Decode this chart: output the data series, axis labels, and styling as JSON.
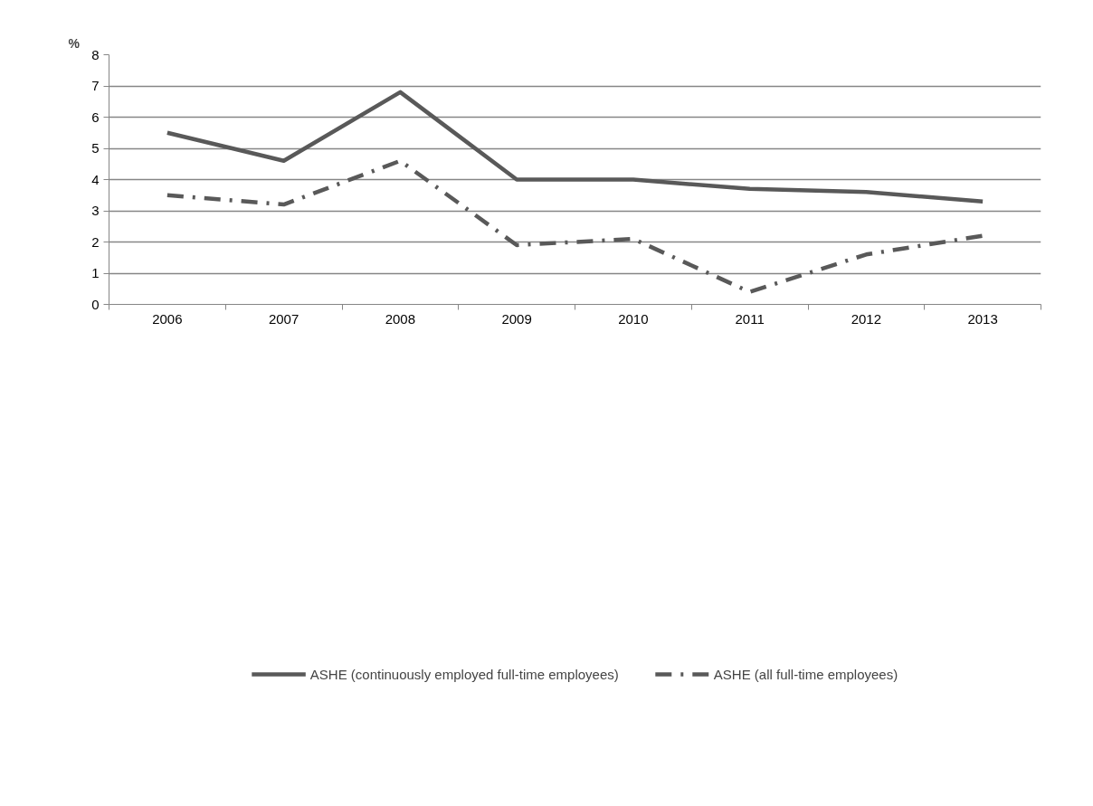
{
  "chart_data": {
    "type": "line",
    "ylabel": "%",
    "categories": [
      "2006",
      "2007",
      "2008",
      "2009",
      "2010",
      "2011",
      "2012",
      "2013"
    ],
    "series": [
      {
        "name": "ASHE (continuously employed full-time employees)",
        "color": "#595959",
        "line_style": "solid",
        "values": [
          5.5,
          4.6,
          6.8,
          4.0,
          4.0,
          3.7,
          3.6,
          3.3
        ]
      },
      {
        "name": "ASHE (all full-time employees)",
        "color": "#595959",
        "line_style": "dashdot",
        "values": [
          3.5,
          3.2,
          4.6,
          1.9,
          2.1,
          0.4,
          1.6,
          2.2
        ]
      }
    ],
    "ylim": [
      0,
      8
    ],
    "yticks": [
      0,
      1,
      2,
      3,
      4,
      5,
      6,
      7,
      8
    ],
    "grid": "y",
    "legend": "bottom",
    "marker": "none"
  }
}
